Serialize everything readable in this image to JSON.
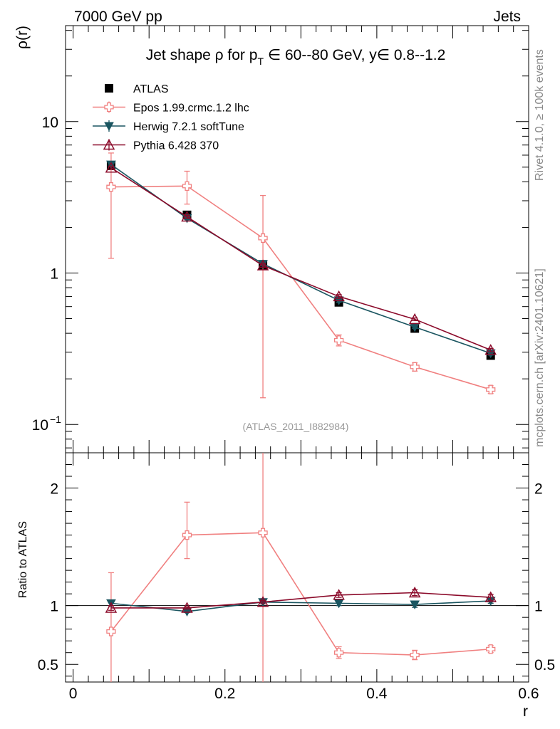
{
  "header": {
    "left": "7000 GeV pp",
    "right": "Jets"
  },
  "side": {
    "rivet": "Rivet 4.1.0, ≥ 100k events",
    "mcplots": "mcplots.cern.ch [arXiv:2401.10621]"
  },
  "colors": {
    "atlas": "#000000",
    "epos": "#f08080",
    "herwig": "#1a5560",
    "pythia": "#8b0a2a"
  },
  "chart_data": [
    {
      "type": "line",
      "title": "Jet shape ρ for p_T ∈ 60--80 GeV, y∈ 0.8--1.2",
      "title_parts": {
        "pre": "Jet shape ρ for p",
        "sub": "T",
        "post": " ∈ 60--80 GeV, y∈ 0.8--1.2"
      },
      "ylabel": "ρ(r)",
      "xlabel": "",
      "yscale": "log",
      "xlim": [
        -0.01,
        0.6
      ],
      "ylim": [
        0.065,
        43
      ],
      "watermark": "(ATLAS_2011_I882984)",
      "x": [
        0.05,
        0.15,
        0.25,
        0.35,
        0.45,
        0.55
      ],
      "yticks": [
        {
          "value": 0.1,
          "label": "10",
          "exp": "−1"
        },
        {
          "value": 1,
          "label": "1",
          "exp": ""
        },
        {
          "value": 10,
          "label": "10",
          "exp": ""
        }
      ],
      "legend": [
        "ATLAS",
        "Epos 1.99.crmc.1.2 lhc",
        "Herwig 7.2.1 softTune",
        "Pythia 6.428 370"
      ],
      "series": [
        {
          "name": "ATLAS",
          "values": [
            5.1,
            2.42,
            1.12,
            0.64,
            0.43,
            0.285
          ],
          "err": [
            0.3,
            0.1,
            0.05,
            0.03,
            0.02,
            0.015
          ]
        },
        {
          "name": "Epos 1.99.crmc.1.2 lhc",
          "values": [
            3.7,
            3.75,
            1.7,
            0.36,
            0.24,
            0.17
          ],
          "err_low": [
            2.45,
            0.9,
            1.55,
            0.03,
            0.015,
            0.01
          ],
          "err_high": [
            2.5,
            0.95,
            1.55,
            0.03,
            0.015,
            0.01
          ]
        },
        {
          "name": "Herwig 7.2.1 softTune",
          "values": [
            5.2,
            2.3,
            1.15,
            0.66,
            0.44,
            0.295
          ],
          "err": [
            0.1,
            0.05,
            0.03,
            0.02,
            0.01,
            0.008
          ]
        },
        {
          "name": "Pythia 6.428 370",
          "values": [
            4.95,
            2.35,
            1.12,
            0.7,
            0.495,
            0.31
          ],
          "err": [
            0.1,
            0.05,
            0.03,
            0.02,
            0.01,
            0.008
          ]
        }
      ]
    },
    {
      "type": "line",
      "ylabel": "Ratio to ATLAS",
      "xlabel": "r",
      "xlim": [
        -0.01,
        0.6
      ],
      "ylim": [
        0.35,
        2.3
      ],
      "yticks": [
        {
          "value": 0.5,
          "label": "0.5"
        },
        {
          "value": 1,
          "label": "1"
        },
        {
          "value": 2,
          "label": "2"
        }
      ],
      "xticks": [
        {
          "value": 0,
          "label": "0"
        },
        {
          "value": 0.2,
          "label": "0.2"
        },
        {
          "value": 0.4,
          "label": "0.4"
        },
        {
          "value": 0.6,
          "label": "0.6"
        }
      ],
      "x": [
        0.05,
        0.15,
        0.25,
        0.35,
        0.45,
        0.55
      ],
      "series": [
        {
          "name": "Epos 1.99.crmc.1.2 lhc",
          "values": [
            0.78,
            1.6,
            1.62,
            0.6,
            0.58,
            0.63
          ],
          "err_low": [
            0.55,
            0.2,
            1.4,
            0.05,
            0.04,
            0.03
          ],
          "err_high": [
            0.5,
            0.28,
            0.8,
            0.05,
            0.04,
            0.03
          ]
        },
        {
          "name": "Herwig 7.2.1 softTune",
          "values": [
            1.02,
            0.95,
            1.03,
            1.02,
            1.01,
            1.04
          ],
          "err": [
            0.02,
            0.01,
            0.015,
            0.02,
            0.025,
            0.02
          ]
        },
        {
          "name": "Pythia 6.428 370",
          "values": [
            0.98,
            0.98,
            1.03,
            1.09,
            1.11,
            1.07
          ],
          "err": [
            0.02,
            0.01,
            0.015,
            0.02,
            0.025,
            0.025
          ]
        }
      ]
    }
  ]
}
